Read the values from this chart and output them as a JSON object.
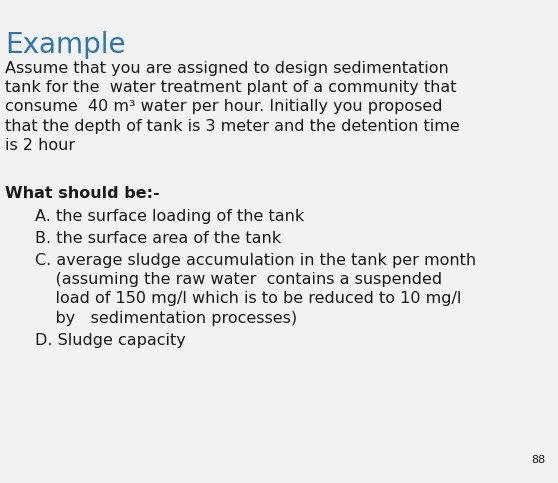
{
  "title": "Example",
  "title_color": "#2E75B0",
  "title_fontsize": 20,
  "background_color": "#F2F2F2",
  "content_color": "#1a1a1a",
  "body_fontsize": 11.5,
  "paragraph_lines": [
    "Assume that you are assigned to design sedimentation",
    "tank for the  water treatment plant of a community that",
    "consume  40 m³ water per hour. Initially you proposed",
    "that the depth of tank is 3 meter and the detention time",
    "is 2 hour"
  ],
  "section_header": "What should be:-",
  "item_A": "A. the surface loading of the tank",
  "item_B": "B. the surface area of the tank",
  "item_C_line1": "C. average sludge accumulation in the tank per month",
  "item_C_line2": "    (assuming the raw water  contains a suspended",
  "item_C_line3": "    load of 150 mg/l which is to be reduced to 10 mg/l",
  "item_C_line4": "    by   sedimentation processes)",
  "item_D": "D. Sludge capacity",
  "page_number": "88"
}
